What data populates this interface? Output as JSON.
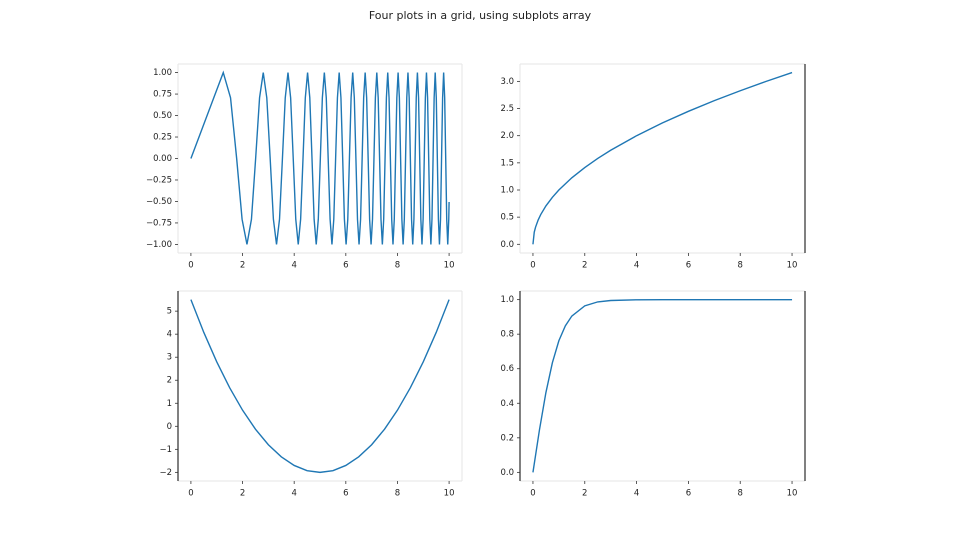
{
  "title": "Four plots in a grid, using subplots array",
  "chart_data": [
    {
      "type": "line",
      "color": "#1f77b4",
      "x": [
        0,
        0.886,
        1.253,
        1.535,
        1.772,
        1.982,
        2.171,
        2.345,
        2.507,
        2.659,
        2.802,
        2.939,
        3.07,
        3.195,
        3.316,
        3.432,
        3.545,
        3.654,
        3.76,
        3.863,
        3.963,
        4.061,
        4.157,
        4.25,
        4.342,
        4.431,
        4.519,
        4.605,
        4.69,
        4.772,
        4.854,
        4.934,
        5.013,
        5.091,
        5.168,
        5.243,
        5.317,
        5.391,
        5.463,
        5.534,
        5.605,
        5.675,
        5.743,
        5.811,
        5.879,
        5.945,
        6.011,
        6.076,
        6.14,
        6.204,
        6.267,
        6.329,
        6.391,
        6.452,
        6.512,
        6.572,
        6.632,
        6.691,
        6.749,
        6.807,
        6.865,
        6.922,
        6.978,
        7.034,
        7.09,
        7.145,
        7.2,
        7.254,
        7.308,
        7.362,
        7.415,
        7.467,
        7.52,
        7.572,
        7.624,
        7.675,
        7.726,
        7.777,
        7.827,
        7.877,
        7.927,
        7.976,
        8.025,
        8.074,
        8.122,
        8.171,
        8.219,
        8.266,
        8.314,
        8.361,
        8.407,
        8.454,
        8.5,
        8.546,
        8.592,
        8.638,
        8.683,
        8.728,
        8.773,
        8.818,
        8.862,
        8.906,
        8.95,
        8.994,
        9.038,
        9.081,
        9.124,
        9.167,
        9.21,
        9.253,
        9.295,
        9.337,
        9.379,
        9.421,
        9.462,
        9.504,
        9.545,
        9.586,
        9.627,
        9.668,
        9.708,
        9.749,
        9.789,
        9.829,
        9.869,
        9.908,
        9.948,
        9.987,
        10
      ],
      "values": [
        0,
        0.707,
        1,
        0.707,
        0,
        -0.707,
        -1,
        -0.707,
        0,
        0.707,
        1,
        0.707,
        0,
        -0.707,
        -1,
        -0.707,
        0,
        0.707,
        1,
        0.707,
        0,
        -0.707,
        -1,
        -0.707,
        0,
        0.707,
        1,
        0.707,
        0,
        -0.707,
        -1,
        -0.707,
        0,
        0.707,
        1,
        0.707,
        0,
        -0.707,
        -1,
        -0.707,
        0,
        0.707,
        1,
        0.707,
        0,
        -0.707,
        -1,
        -0.707,
        0,
        0.707,
        1,
        0.707,
        0,
        -0.707,
        -1,
        -0.707,
        0,
        0.707,
        1,
        0.707,
        0,
        -0.707,
        -1,
        -0.707,
        0,
        0.707,
        1,
        0.707,
        0,
        -0.707,
        -1,
        -0.707,
        0,
        0.707,
        1,
        0.707,
        0,
        -0.707,
        -1,
        -0.707,
        0,
        0.707,
        1,
        0.707,
        0,
        -0.707,
        -1,
        -0.707,
        0,
        0.707,
        1,
        0.707,
        0,
        -0.707,
        -1,
        -0.707,
        0,
        0.707,
        1,
        0.707,
        0,
        -0.707,
        -1,
        -0.707,
        0,
        0.707,
        1,
        0.707,
        0,
        -0.707,
        -1,
        -0.707,
        0,
        0.707,
        1,
        0.707,
        0,
        -0.707,
        -1,
        -0.707,
        0,
        0.707,
        1,
        0.707,
        0,
        -0.707,
        -1,
        -0.707,
        -0.506
      ],
      "xlim": [
        -0.5,
        10.5
      ],
      "xticks": [
        0,
        2,
        4,
        6,
        8,
        10
      ],
      "ylim": [
        -1.1,
        1.1
      ],
      "yticks": [
        {
          "value": -1,
          "label": "−1.00"
        },
        {
          "value": -0.75,
          "label": "−0.75"
        },
        {
          "value": -0.5,
          "label": "−0.50"
        },
        {
          "value": -0.25,
          "label": "−0.25"
        },
        {
          "value": 0,
          "label": "0.00"
        },
        {
          "value": 0.25,
          "label": "0.25"
        },
        {
          "value": 0.5,
          "label": "0.50"
        },
        {
          "value": 0.75,
          "label": "0.75"
        },
        {
          "value": 1,
          "label": "1.00"
        }
      ]
    },
    {
      "type": "line",
      "color": "#1f77b4",
      "x": [
        0,
        0.05,
        0.1,
        0.2,
        0.3,
        0.5,
        0.75,
        1,
        1.5,
        2,
        2.5,
        3,
        4,
        5,
        6,
        7,
        8,
        9,
        10
      ],
      "values": [
        0,
        0.224,
        0.316,
        0.447,
        0.548,
        0.707,
        0.866,
        1,
        1.225,
        1.414,
        1.581,
        1.732,
        2,
        2.236,
        2.449,
        2.646,
        2.828,
        3,
        3.162
      ],
      "xlim": [
        -0.5,
        10.5
      ],
      "xticks": [
        0,
        2,
        4,
        6,
        8,
        10
      ],
      "ylim": [
        -0.16,
        3.32
      ],
      "yticks": [
        {
          "value": 0,
          "label": "0.0"
        },
        0.5,
        {
          "value": 1,
          "label": "1.0"
        },
        1.5,
        {
          "value": 2,
          "label": "2.0"
        },
        2.5,
        {
          "value": 3,
          "label": "3.0"
        }
      ]
    },
    {
      "type": "line",
      "color": "#1f77b4",
      "x": [
        0,
        0.5,
        1,
        1.5,
        2,
        2.5,
        3,
        3.5,
        4,
        4.5,
        5,
        5.5,
        6,
        6.5,
        7,
        7.5,
        8,
        8.5,
        9,
        9.5,
        10
      ],
      "values": [
        5.5,
        4.075,
        2.8,
        1.675,
        0.7,
        -0.125,
        -0.8,
        -1.325,
        -1.7,
        -1.925,
        -2,
        -1.925,
        -1.7,
        -1.325,
        -0.8,
        -0.125,
        0.7,
        1.675,
        2.8,
        4.075,
        5.5
      ],
      "xlim": [
        -0.5,
        10.5
      ],
      "xticks": [
        0,
        2,
        4,
        6,
        8,
        10
      ],
      "ylim": [
        -2.375,
        5.875
      ],
      "yticks": [
        {
          "value": -2,
          "label": "−2"
        },
        {
          "value": -1,
          "label": "−1"
        },
        0,
        1,
        2,
        3,
        4,
        5
      ]
    },
    {
      "type": "line",
      "color": "#1f77b4",
      "x": [
        0,
        0.25,
        0.5,
        0.75,
        1,
        1.25,
        1.5,
        2,
        2.5,
        3,
        4,
        5,
        10
      ],
      "values": [
        0,
        0.245,
        0.462,
        0.635,
        0.762,
        0.848,
        0.905,
        0.964,
        0.987,
        0.995,
        0.999,
        1,
        1
      ],
      "xlim": [
        -0.5,
        10.5
      ],
      "xticks": [
        0,
        2,
        4,
        6,
        8,
        10
      ],
      "ylim": [
        -0.05,
        1.05
      ],
      "yticks": [
        {
          "value": 0,
          "label": "0.0"
        },
        {
          "value": 0.2,
          "label": "0.2"
        },
        {
          "value": 0.4,
          "label": "0.4"
        },
        {
          "value": 0.6,
          "label": "0.6"
        },
        {
          "value": 0.8,
          "label": "0.8"
        },
        {
          "value": 1,
          "label": "1.0"
        }
      ]
    }
  ]
}
